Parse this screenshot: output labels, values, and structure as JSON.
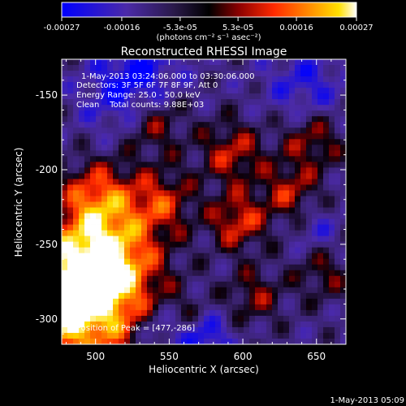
{
  "chart_data": {
    "type": "heatmap",
    "title": "Reconstructed RHESSI Image",
    "xlabel": "Heliocentric X (arcsec)",
    "ylabel": "Heliocentric Y (arcsec)",
    "xlim": [
      477,
      670
    ],
    "ylim": [
      -317,
      -126
    ],
    "x_ticks": [
      500,
      550,
      600,
      650
    ],
    "y_ticks": [
      -150,
      -200,
      -250,
      -300
    ],
    "colorbar": {
      "range": [
        -0.00027,
        0.00027
      ],
      "ticks": [
        -0.00027,
        -0.00016,
        -5.3e-05,
        5.3e-05,
        0.00016,
        0.00027
      ],
      "tick_labels": [
        "-0.00027",
        "-0.00016",
        "-5.3e-05",
        "5.3e-05",
        "0.00016",
        "0.00027"
      ],
      "units": "(photons cm⁻² s⁻¹ asec⁻²)"
    },
    "annotations": [
      "1-May-2013 03:24:06.000 to 03:30:06.000",
      "Detectors: 3F 5F 6F 7F 8F 9F, Att 0",
      "Energy Range: 25.0 - 50.0 keV",
      "Clean    Total counts: 9.88E+03"
    ],
    "peak_label": "Position of Peak = [477,-286]",
    "peak_position": [
      477,
      -286
    ],
    "timestamp": "1-May-2013 05:09"
  },
  "colors": {
    "background": "#000000",
    "text": "#ffffff",
    "colormap": [
      "#0000ff",
      "#4b2aa8",
      "#3a2a66",
      "#000000",
      "#8a0000",
      "#ff2a00",
      "#ff8c00",
      "#ffe000",
      "#ffffff"
    ]
  }
}
